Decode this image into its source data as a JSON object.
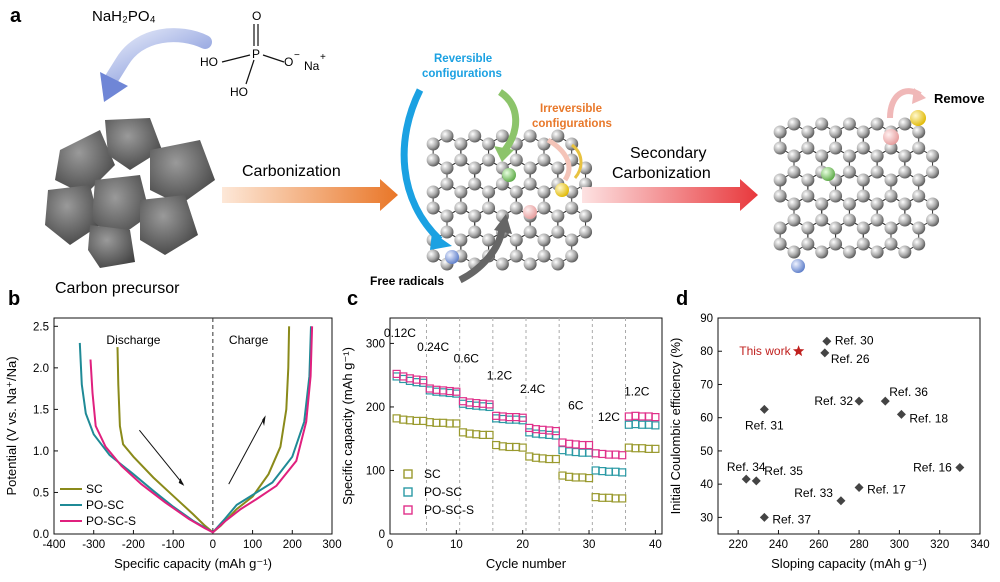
{
  "panel_a": {
    "label": "a",
    "reagent": "NaH₂PO₄",
    "molecule": {
      "O_top": "O",
      "P": "P",
      "HO_left": "HO",
      "O_minus": "O",
      "minus": "−",
      "Na": "Na",
      "plus": "+",
      "HO_bottom": "HO"
    },
    "precursor_label": "Carbon precursor",
    "step1": "Carbonization",
    "reversible": [
      "Reversible",
      "configurations"
    ],
    "irreversible": [
      "Irreversible",
      "configurations"
    ],
    "free_radicals": "Free radicals",
    "step2": [
      "Secondary",
      "Carbonization"
    ],
    "remove": "Remove",
    "colors": {
      "reversible": "#1ba1e2",
      "irreversible": "#e8782a",
      "arrow": "#e97627",
      "arrow2": "#e84040"
    }
  },
  "chart_data": [
    {
      "panel": "b",
      "type": "line",
      "xlabel": "Specific capacity (mAh g⁻¹)",
      "ylabel": "Potential (V vs. Na⁺/Na)",
      "xlim": [
        -400,
        300
      ],
      "ylim": [
        0,
        2.6
      ],
      "xticks": [
        "-400",
        "-300",
        "-200",
        "-100",
        "0",
        "100",
        "200",
        "300"
      ],
      "yticks": [
        "0.0",
        "0.5",
        "1.0",
        "1.5",
        "2.0",
        "2.5"
      ],
      "annotations": {
        "discharge": "Discharge",
        "charge": "Charge"
      },
      "legend_placement": "bottom-left",
      "series": [
        {
          "name": "SC",
          "color": "#8a8a1a",
          "discharge": [
            [
              -240,
              2.25
            ],
            [
              -238,
              1.8
            ],
            [
              -234,
              1.3
            ],
            [
              -226,
              1.08
            ],
            [
              -200,
              0.93
            ],
            [
              -150,
              0.68
            ],
            [
              -100,
              0.46
            ],
            [
              -50,
              0.24
            ],
            [
              -20,
              0.1
            ],
            [
              0,
              0.02
            ]
          ],
          "charge": [
            [
              0,
              0.02
            ],
            [
              20,
              0.1
            ],
            [
              60,
              0.3
            ],
            [
              100,
              0.45
            ],
            [
              140,
              0.72
            ],
            [
              170,
              1.05
            ],
            [
              185,
              1.5
            ],
            [
              190,
              2.0
            ],
            [
              192,
              2.5
            ]
          ]
        },
        {
          "name": "PO-SC",
          "color": "#1f8a96",
          "discharge": [
            [
              -335,
              2.3
            ],
            [
              -330,
              1.8
            ],
            [
              -320,
              1.45
            ],
            [
              -300,
              1.2
            ],
            [
              -260,
              0.95
            ],
            [
              -200,
              0.72
            ],
            [
              -150,
              0.52
            ],
            [
              -100,
              0.33
            ],
            [
              -50,
              0.16
            ],
            [
              0,
              0.02
            ]
          ],
          "charge": [
            [
              0,
              0.02
            ],
            [
              30,
              0.18
            ],
            [
              60,
              0.35
            ],
            [
              100,
              0.47
            ],
            [
              150,
              0.62
            ],
            [
              200,
              0.93
            ],
            [
              230,
              1.35
            ],
            [
              243,
              1.9
            ],
            [
              247,
              2.5
            ]
          ]
        },
        {
          "name": "PO-SC-S",
          "color": "#e0207e",
          "discharge": [
            [
              -308,
              2.1
            ],
            [
              -303,
              1.7
            ],
            [
              -295,
              1.3
            ],
            [
              -270,
              1.05
            ],
            [
              -230,
              0.82
            ],
            [
              -180,
              0.6
            ],
            [
              -120,
              0.38
            ],
            [
              -60,
              0.18
            ],
            [
              -20,
              0.07
            ],
            [
              0,
              0.02
            ]
          ],
          "charge": [
            [
              0,
              0.02
            ],
            [
              30,
              0.15
            ],
            [
              70,
              0.3
            ],
            [
              110,
              0.42
            ],
            [
              160,
              0.58
            ],
            [
              210,
              0.88
            ],
            [
              235,
              1.35
            ],
            [
              246,
              1.9
            ],
            [
              250,
              2.5
            ]
          ]
        }
      ]
    },
    {
      "panel": "c",
      "type": "scatter",
      "xlabel": "Cycle number",
      "ylabel": "Specific capacity (mAh g⁻¹)",
      "xlim": [
        0,
        41
      ],
      "ylim": [
        0,
        340
      ],
      "xticks": [
        "0",
        "10",
        "20",
        "30",
        "40"
      ],
      "yticks": [
        "0",
        "100",
        "200",
        "300"
      ],
      "rate_labels": [
        "0.12C",
        "0.24C",
        "0.6C",
        "1.2C",
        "2.4C",
        "6C",
        "12C",
        "1.2C"
      ],
      "legend_placement": "bottom-left",
      "series": [
        {
          "name": "SC",
          "color": "#9a9a2e",
          "values": [
            182,
            180,
            179,
            178,
            178,
            176,
            175,
            175,
            174,
            174,
            160,
            158,
            157,
            156,
            156,
            140,
            138,
            137,
            137,
            136,
            122,
            120,
            119,
            118,
            118,
            92,
            90,
            89,
            89,
            88,
            58,
            57,
            57,
            56,
            56,
            136,
            135,
            135,
            134,
            134
          ]
        },
        {
          "name": "PO-SC",
          "color": "#2a9aa5",
          "values": [
            248,
            244,
            241,
            239,
            238,
            226,
            224,
            223,
            222,
            221,
            205,
            203,
            202,
            201,
            200,
            182,
            181,
            180,
            180,
            179,
            160,
            158,
            157,
            156,
            155,
            132,
            130,
            129,
            128,
            128,
            100,
            99,
            98,
            98,
            97,
            172,
            173,
            172,
            172,
            171
          ]
        },
        {
          "name": "PO-SC-S",
          "color": "#e0308a",
          "values": [
            252,
            248,
            245,
            243,
            242,
            229,
            227,
            226,
            225,
            224,
            209,
            207,
            206,
            205,
            204,
            186,
            185,
            184,
            184,
            183,
            167,
            165,
            164,
            163,
            162,
            144,
            142,
            141,
            140,
            140,
            127,
            126,
            125,
            125,
            124,
            185,
            186,
            185,
            185,
            184
          ]
        }
      ]
    },
    {
      "panel": "d",
      "type": "scatter",
      "xlabel": "Sloping capacity (mAh g⁻¹)",
      "ylabel": "Initial Coulombic efficiency (%)",
      "xlim": [
        210,
        340
      ],
      "ylim": [
        25,
        90
      ],
      "xticks": [
        "220",
        "240",
        "260",
        "280",
        "300",
        "320",
        "340"
      ],
      "yticks": [
        "30",
        "40",
        "50",
        "60",
        "70",
        "80",
        "90"
      ],
      "this_work": {
        "name": "This work",
        "x": 250,
        "y": 80,
        "color": "#c0201e"
      },
      "points": [
        {
          "label": "Ref. 30",
          "x": 264,
          "y": 83
        },
        {
          "label": "Ref. 26",
          "x": 263,
          "y": 79.5
        },
        {
          "label": "Ref. 36",
          "x": 293,
          "y": 65
        },
        {
          "label": "Ref. 32",
          "x": 280,
          "y": 65
        },
        {
          "label": "Ref. 18",
          "x": 301,
          "y": 61
        },
        {
          "label": "Ref. 31",
          "x": 233,
          "y": 62.5
        },
        {
          "label": "Ref. 16",
          "x": 330,
          "y": 45
        },
        {
          "label": "Ref. 34",
          "x": 224,
          "y": 41.5
        },
        {
          "label": "Ref. 35",
          "x": 229,
          "y": 41
        },
        {
          "label": "Ref. 17",
          "x": 280,
          "y": 39
        },
        {
          "label": "Ref. 33",
          "x": 271,
          "y": 35
        },
        {
          "label": "Ref. 37",
          "x": 233,
          "y": 30
        }
      ]
    }
  ]
}
